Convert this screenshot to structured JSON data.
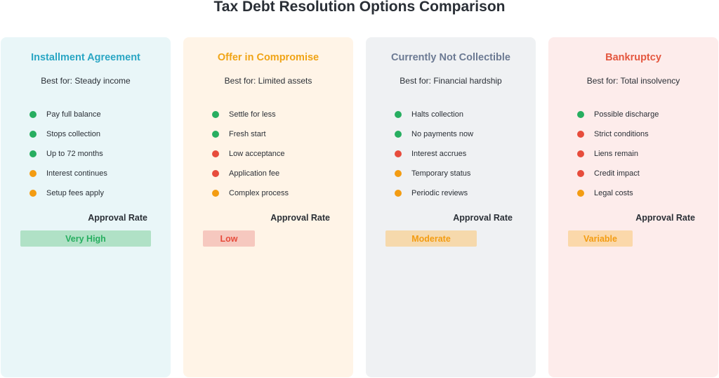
{
  "title": "Tax Debt Resolution Options Comparison",
  "approval_label": "Approval Rate",
  "status_colors": {
    "positive": "#27ae60",
    "negative": "#e74c3c",
    "neutral": "#f39c12"
  },
  "options": [
    {
      "name": "Installment Agreement",
      "best_for": "Best for: Steady income",
      "accent": "#2aa6c4",
      "background": "#e9f6f8",
      "points": [
        {
          "text": "Pay full balance",
          "status": "positive"
        },
        {
          "text": "Stops collection",
          "status": "positive"
        },
        {
          "text": "Up to 72 months",
          "status": "positive"
        },
        {
          "text": "Interest continues",
          "status": "neutral"
        },
        {
          "text": "Setup fees apply",
          "status": "neutral"
        }
      ],
      "approval": "Very High",
      "approval_bg": "#b0e1c6",
      "approval_color": "#27ae60"
    },
    {
      "name": "Offer in Compromise",
      "best_for": "Best for: Limited assets",
      "accent": "#f0a416",
      "background": "#fff4e7",
      "points": [
        {
          "text": "Settle for less",
          "status": "positive"
        },
        {
          "text": "Fresh start",
          "status": "positive"
        },
        {
          "text": "Low acceptance",
          "status": "negative"
        },
        {
          "text": "Application fee",
          "status": "negative"
        },
        {
          "text": "Complex process",
          "status": "neutral"
        }
      ],
      "approval": "Low",
      "approval_bg": "#f6c8bf",
      "approval_color": "#e74c3c"
    },
    {
      "name": "Currently Not Collectible",
      "best_for": "Best for: Financial hardship",
      "accent": "#6c7a93",
      "background": "#eff1f3",
      "points": [
        {
          "text": "Halts collection",
          "status": "positive"
        },
        {
          "text": "No payments now",
          "status": "positive"
        },
        {
          "text": "Interest accrues",
          "status": "negative"
        },
        {
          "text": "Temporary status",
          "status": "neutral"
        },
        {
          "text": "Periodic reviews",
          "status": "neutral"
        }
      ],
      "approval": "Moderate",
      "approval_bg": "#f6d9ac",
      "approval_color": "#f39c12"
    },
    {
      "name": "Bankruptcy",
      "best_for": "Best for: Total insolvency",
      "accent": "#e4573f",
      "background": "#fdeceb",
      "points": [
        {
          "text": "Possible discharge",
          "status": "positive"
        },
        {
          "text": "Strict conditions",
          "status": "negative"
        },
        {
          "text": "Liens remain",
          "status": "negative"
        },
        {
          "text": "Credit impact",
          "status": "negative"
        },
        {
          "text": "Legal costs",
          "status": "neutral"
        }
      ],
      "approval": "Variable",
      "approval_bg": "#fbd8aa",
      "approval_color": "#f39c12"
    }
  ]
}
